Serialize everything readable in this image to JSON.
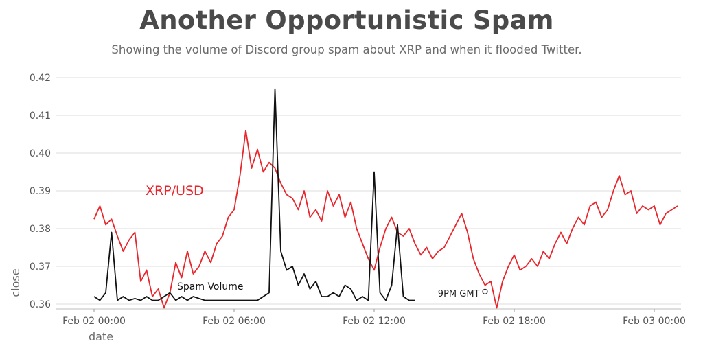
{
  "title": "Another Opportunistic Spam",
  "subtitle": "Showing the volume of Discord group spam about XRP and when it flooded Twitter.",
  "colors": {
    "xrp": "#e8262b",
    "spam": "#111111",
    "grid": "#dcdcdc",
    "text": "#555555"
  },
  "chart_data": {
    "type": "line",
    "xlabel": "date",
    "ylabel": "close",
    "ylim": [
      0.36,
      0.42
    ],
    "xlim": [
      "Feb 02 00:00",
      "Feb 03 00:00"
    ],
    "yticks": [
      "0.36",
      "0.37",
      "0.38",
      "0.39",
      "0.40",
      "0.41",
      "0.42"
    ],
    "xticks": [
      "Feb 02 00:00",
      "Feb 02 06:00",
      "Feb 02 12:00",
      "Feb 02 18:00",
      "Feb 03 00:00"
    ],
    "grid": true,
    "annotations": [
      {
        "text": "XRP/USD",
        "series": "xrp"
      },
      {
        "text": "Spam Volume",
        "series": "spam"
      },
      {
        "text": "9PM GMT",
        "x": "Feb 02 16:45",
        "y": 0.3633
      }
    ],
    "series": [
      {
        "name": "XRP/USD",
        "key": "xrp",
        "x_start": "Feb 02 00:00",
        "x_step_minutes": 15,
        "values": [
          0.3825,
          0.386,
          0.381,
          0.3825,
          0.378,
          0.374,
          0.377,
          0.379,
          0.366,
          0.369,
          0.362,
          0.364,
          0.359,
          0.363,
          0.371,
          0.367,
          0.374,
          0.368,
          0.37,
          0.374,
          0.371,
          0.376,
          0.378,
          0.383,
          0.385,
          0.394,
          0.406,
          0.396,
          0.401,
          0.395,
          0.3975,
          0.396,
          0.392,
          0.389,
          0.388,
          0.385,
          0.39,
          0.383,
          0.385,
          0.382,
          0.39,
          0.386,
          0.389,
          0.383,
          0.387,
          0.38,
          0.376,
          0.372,
          0.369,
          0.375,
          0.38,
          0.383,
          0.379,
          0.378,
          0.38,
          0.376,
          0.373,
          0.375,
          0.372,
          0.374,
          0.375,
          0.378,
          0.381,
          0.384,
          0.379,
          0.372,
          0.368,
          0.365,
          0.366,
          0.359,
          0.366,
          0.37,
          0.373,
          0.369,
          0.37,
          0.372,
          0.37,
          0.374,
          0.372,
          0.376,
          0.379,
          0.376,
          0.38,
          0.383,
          0.381,
          0.386,
          0.387,
          0.383,
          0.385,
          0.39,
          0.394,
          0.389,
          0.39,
          0.384,
          0.386,
          0.385,
          0.386,
          0.381,
          0.384,
          0.385,
          0.386
        ]
      },
      {
        "name": "Spam Volume",
        "key": "spam",
        "x_start": "Feb 02 00:00",
        "x_step_minutes": 15,
        "values": [
          0.362,
          0.361,
          0.363,
          0.379,
          0.361,
          0.362,
          0.361,
          0.3615,
          0.361,
          0.362,
          0.361,
          0.361,
          0.362,
          0.363,
          0.361,
          0.362,
          0.361,
          0.362,
          0.3615,
          0.361,
          0.361,
          0.361,
          0.361,
          0.361,
          0.361,
          0.361,
          0.361,
          0.361,
          0.361,
          0.362,
          0.363,
          0.417,
          0.374,
          0.369,
          0.37,
          0.365,
          0.368,
          0.364,
          0.366,
          0.362,
          0.362,
          0.363,
          0.362,
          0.365,
          0.364,
          0.361,
          0.362,
          0.361,
          0.395,
          0.363,
          0.361,
          0.365,
          0.381,
          0.362,
          0.361,
          0.361
        ]
      }
    ]
  }
}
